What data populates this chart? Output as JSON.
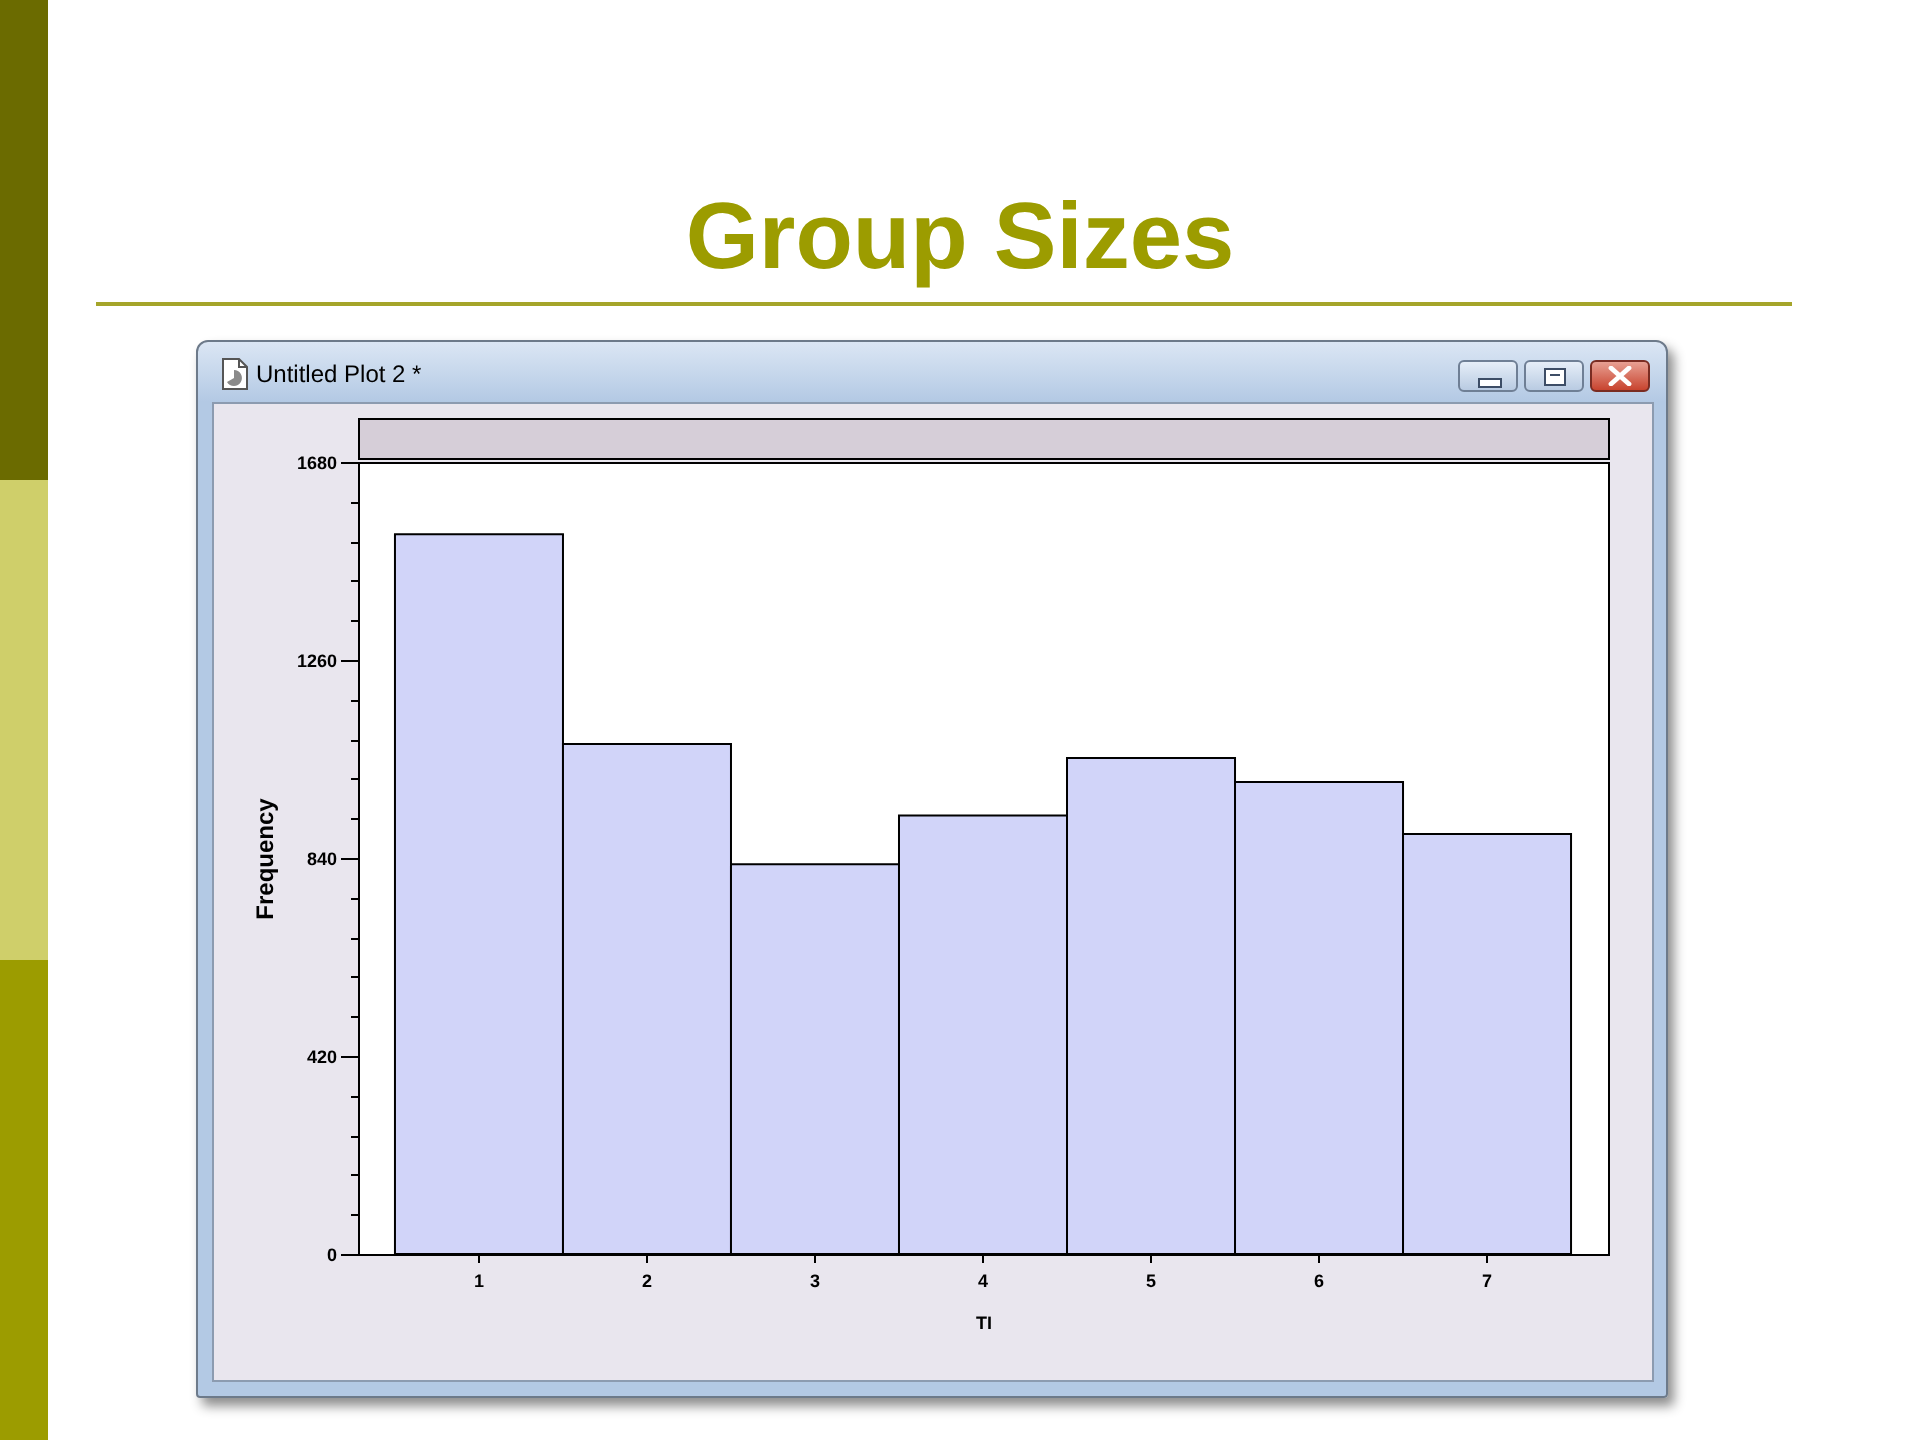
{
  "chart_data": {
    "type": "bar",
    "title": "Group Sizes",
    "xlabel": "TI",
    "ylabel": "Frequency",
    "annotations": [
      "Untitled Plot 2 *"
    ],
    "categories": [
      "1",
      "2",
      "3",
      "4",
      "5",
      "6",
      "7"
    ],
    "values": [
      1527,
      1082,
      827,
      930,
      1052,
      1001,
      891
    ],
    "color": "#d1d4f9",
    "ylim": [
      0,
      1680
    ],
    "yticks": [
      0,
      {
        "value": 84,
        "label": null
      },
      {
        "value": 168,
        "label": null
      },
      {
        "value": 252,
        "label": null
      },
      {
        "value": 336,
        "label": null
      },
      420,
      {
        "value": 504,
        "label": null
      },
      {
        "value": 588,
        "label": null
      },
      {
        "value": 672,
        "label": null
      },
      {
        "value": 756,
        "label": null
      },
      840,
      {
        "value": 924,
        "label": null
      },
      {
        "value": 1008,
        "label": null
      },
      {
        "value": 1092,
        "label": null
      },
      {
        "value": 1176,
        "label": null
      },
      1260,
      {
        "value": 1344,
        "label": null
      },
      {
        "value": 1428,
        "label": null
      },
      {
        "value": 1512,
        "label": null
      },
      {
        "value": 1596,
        "label": null
      },
      1680
    ]
  }
}
